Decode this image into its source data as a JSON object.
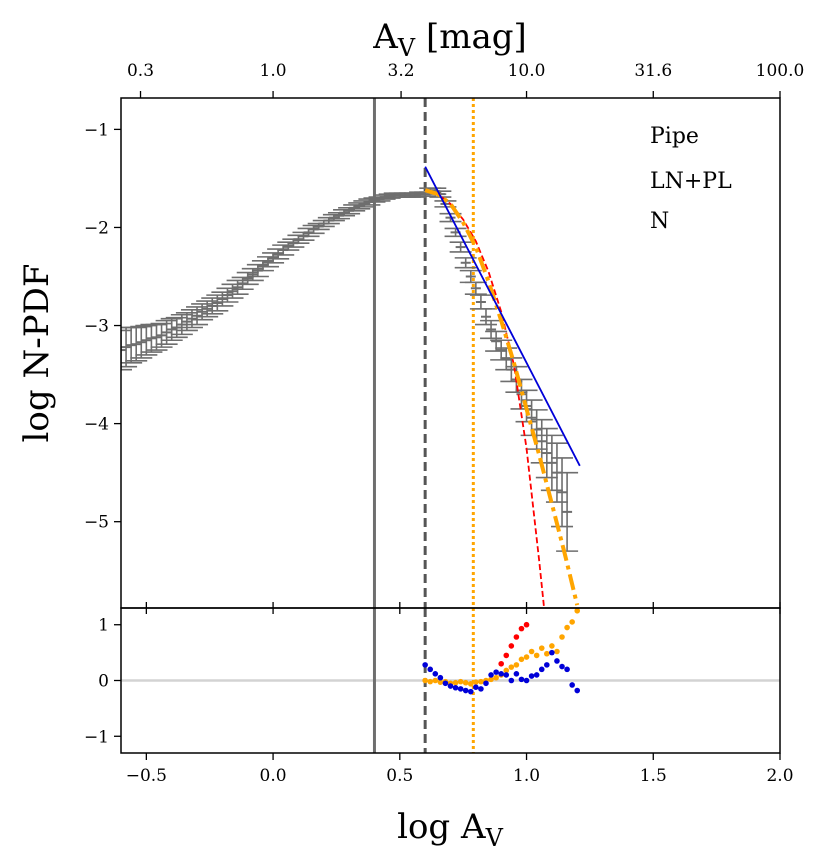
{
  "chart_data": {
    "type": "scatter",
    "title": "",
    "xlabel": "log A",
    "xlabel_sub": "V",
    "ylabel": "log N-PDF",
    "top_xlabel": "A",
    "top_xlabel_sub": "V",
    "top_xlabel_unit": " [mag]",
    "xlim": [
      -0.6,
      2.0
    ],
    "ylim_main": [
      -5.88,
      -0.68
    ],
    "ylim_resid": [
      -1.3,
      1.3
    ],
    "x_ticks": [
      -0.5,
      0.0,
      0.5,
      1.0,
      1.5,
      2.0
    ],
    "x_tick_labels": [
      "−0.5",
      "0.0",
      "0.5",
      "1.0",
      "1.5",
      "2.0"
    ],
    "y_ticks_main": [
      -1,
      -2,
      -3,
      -4,
      -5
    ],
    "y_tick_labels_main": [
      "−1",
      "−2",
      "−3",
      "−4",
      "−5"
    ],
    "y_ticks_resid": [
      1,
      0,
      -1
    ],
    "y_tick_labels_resid": [
      "1",
      "0",
      "−1"
    ],
    "top_ticks": [
      -0.523,
      0.0,
      0.505,
      1.0,
      1.5,
      2.0
    ],
    "top_tick_labels": [
      "0.3",
      "1.0",
      "3.2",
      "10.0",
      "31.6",
      "100.0"
    ],
    "legend": [
      "Pipe",
      "LN+PL",
      "N"
    ],
    "legend_location": "top-right",
    "colors": {
      "data": "#6e6e6e",
      "pl": "#0000d8",
      "ln": "#ff0000",
      "lnpl": "#ffa500",
      "vline_solid": "#6e6e6e",
      "vline_dashed": "#555555",
      "vline_dotted": "#ffa500",
      "zero_line": "#d3d3d3"
    },
    "vlines": [
      {
        "x": 0.4,
        "style": "solid"
      },
      {
        "x": 0.6,
        "style": "dashed"
      },
      {
        "x": 0.79,
        "style": "dotted"
      }
    ],
    "npdf_data": {
      "x_start": -0.6,
      "step": 0.02,
      "y": [
        -3.25,
        -3.22,
        -3.2,
        -3.19,
        -3.17,
        -3.15,
        -3.13,
        -3.12,
        -3.1,
        -3.07,
        -3.04,
        -3.02,
        -2.99,
        -2.96,
        -2.93,
        -2.9,
        -2.86,
        -2.83,
        -2.8,
        -2.77,
        -2.73,
        -2.69,
        -2.65,
        -2.61,
        -2.57,
        -2.52,
        -2.48,
        -2.44,
        -2.39,
        -2.35,
        -2.31,
        -2.27,
        -2.23,
        -2.19,
        -2.16,
        -2.12,
        -2.09,
        -2.05,
        -2.02,
        -1.99,
        -1.96,
        -1.93,
        -1.9,
        -1.88,
        -1.85,
        -1.83,
        -1.8,
        -1.78,
        -1.76,
        -1.74,
        -1.72,
        -1.71,
        -1.69,
        -1.68,
        -1.67,
        -1.67,
        -1.67,
        -1.67,
        -1.67,
        -1.66,
        -1.66,
        -1.62,
        -1.63,
        -1.66,
        -1.76,
        -1.9,
        -2.05,
        -2.2,
        -2.36,
        -2.5,
        -2.62,
        -2.76,
        -2.91,
        -3.04,
        -3.16,
        -3.25,
        -3.34,
        -3.45,
        -3.55,
        -3.7,
        -3.82,
        -3.94,
        -4.06,
        -4.18,
        -4.3,
        -4.4,
        -4.5,
        -4.7,
        -4.9
      ],
      "err": [
        0.2,
        0.2,
        0.18,
        0.17,
        0.16,
        0.15,
        0.14,
        0.13,
        0.12,
        0.12,
        0.11,
        0.1,
        0.1,
        0.09,
        0.09,
        0.09,
        0.08,
        0.08,
        0.08,
        0.08,
        0.07,
        0.07,
        0.07,
        0.07,
        0.06,
        0.06,
        0.06,
        0.06,
        0.05,
        0.05,
        0.05,
        0.05,
        0.05,
        0.04,
        0.04,
        0.04,
        0.04,
        0.04,
        0.04,
        0.03,
        0.03,
        0.03,
        0.03,
        0.03,
        0.03,
        0.03,
        0.03,
        0.03,
        0.03,
        0.03,
        0.02,
        0.02,
        0.02,
        0.02,
        0.02,
        0.02,
        0.02,
        0.02,
        0.02,
        0.02,
        0.02,
        0.02,
        0.03,
        0.03,
        0.03,
        0.04,
        0.04,
        0.05,
        0.05,
        0.06,
        0.06,
        0.07,
        0.08,
        0.09,
        0.1,
        0.1,
        0.11,
        0.12,
        0.13,
        0.15,
        0.16,
        0.18,
        0.2,
        0.22,
        0.25,
        0.28,
        0.3,
        0.35,
        0.4
      ]
    },
    "powerlaw_fit": {
      "x": [
        0.6,
        1.21
      ],
      "y": [
        -1.38,
        -4.43
      ]
    },
    "lognormal_fit": {
      "x": [
        0.6,
        0.65,
        0.7,
        0.75,
        0.8,
        0.85,
        0.9,
        0.95,
        1.0,
        1.05,
        1.07
      ],
      "y": [
        -1.62,
        -1.66,
        -1.76,
        -1.92,
        -2.14,
        -2.45,
        -2.86,
        -3.4,
        -4.25,
        -5.4,
        -5.9
      ]
    },
    "lnpl_fit": {
      "x": [
        0.6,
        0.65,
        0.7,
        0.75,
        0.8,
        0.85,
        0.9,
        0.95,
        1.0,
        1.05,
        1.1,
        1.15,
        1.2
      ],
      "y": [
        -1.62,
        -1.66,
        -1.76,
        -1.95,
        -2.2,
        -2.55,
        -2.95,
        -3.38,
        -3.85,
        -4.32,
        -4.82,
        -5.32,
        -5.85
      ]
    },
    "residuals": {
      "red": {
        "x": [
          0.9,
          0.92,
          0.94,
          0.96,
          0.98,
          1.0
        ],
        "y": [
          0.3,
          0.45,
          0.62,
          0.78,
          0.93,
          1.0
        ]
      },
      "orange": {
        "x": [
          0.6,
          0.62,
          0.64,
          0.66,
          0.68,
          0.7,
          0.72,
          0.74,
          0.76,
          0.78,
          0.8,
          0.82,
          0.84,
          0.86,
          0.88,
          0.9,
          0.92,
          0.94,
          0.96,
          0.98,
          1.0,
          1.02,
          1.04,
          1.06,
          1.08,
          1.1,
          1.12,
          1.14,
          1.16,
          1.18,
          1.2
        ],
        "y": [
          0.0,
          -0.02,
          0.0,
          -0.03,
          -0.02,
          -0.05,
          -0.04,
          -0.02,
          -0.04,
          -0.06,
          -0.03,
          -0.02,
          0.0,
          0.02,
          0.05,
          0.1,
          0.18,
          0.24,
          0.28,
          0.38,
          0.42,
          0.52,
          0.45,
          0.58,
          0.48,
          0.62,
          0.52,
          0.78,
          0.95,
          1.05,
          1.25
        ]
      },
      "blue": {
        "x": [
          0.6,
          0.62,
          0.64,
          0.66,
          0.68,
          0.7,
          0.72,
          0.74,
          0.76,
          0.78,
          0.8,
          0.82,
          0.84,
          0.86,
          0.88,
          0.9,
          0.92,
          0.94,
          0.96,
          0.98,
          1.0,
          1.02,
          1.04,
          1.06,
          1.08,
          1.1,
          1.12,
          1.14,
          1.16,
          1.18,
          1.2
        ],
        "y": [
          0.28,
          0.2,
          0.12,
          0.05,
          -0.05,
          -0.1,
          -0.13,
          -0.15,
          -0.18,
          -0.2,
          -0.12,
          -0.15,
          -0.05,
          0.1,
          0.15,
          0.12,
          0.1,
          0.0,
          0.12,
          0.02,
          0.0,
          0.08,
          0.1,
          0.2,
          0.28,
          0.5,
          0.35,
          0.25,
          0.2,
          -0.08,
          -0.18
        ]
      }
    }
  }
}
